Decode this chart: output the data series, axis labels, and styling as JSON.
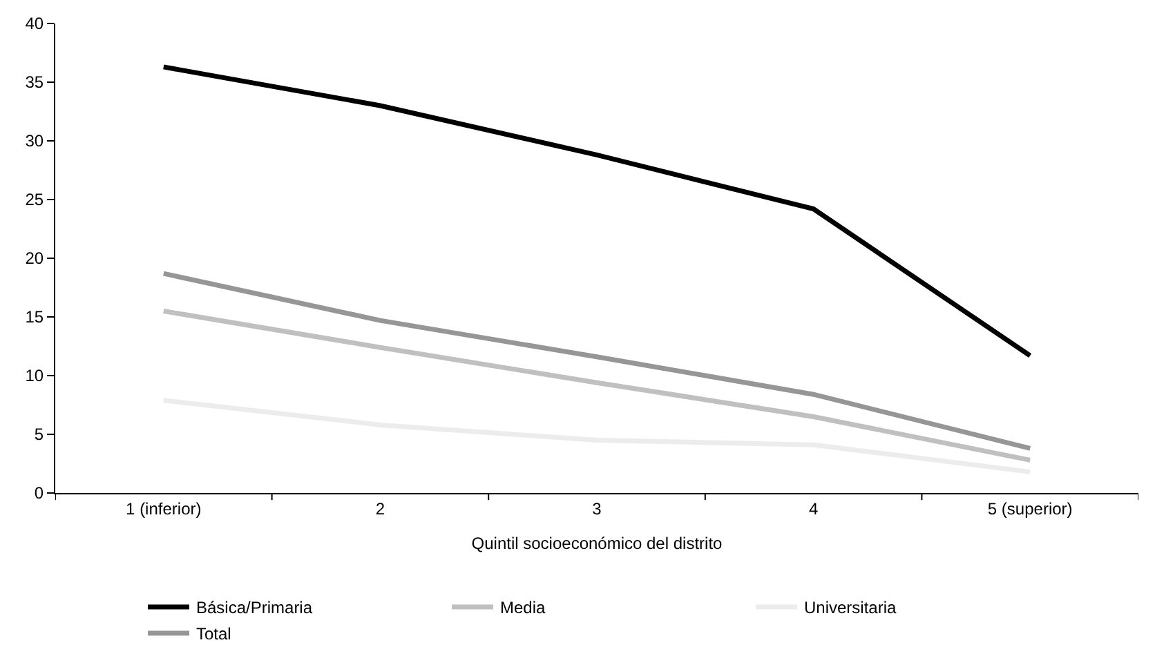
{
  "chart_data": {
    "type": "line",
    "xlabel": "Quintil socioeconómico del distrito",
    "categories": [
      "1 (inferior)",
      "2",
      "3",
      "4",
      "5 (superior)"
    ],
    "series": [
      {
        "name": "Básica/Primaria",
        "color": "#000000",
        "values": [
          36.3,
          33.0,
          28.8,
          24.2,
          11.7
        ]
      },
      {
        "name": "Media",
        "color": "#c0c0c0",
        "values": [
          15.5,
          12.4,
          9.4,
          6.5,
          2.8
        ]
      },
      {
        "name": "Universitaria",
        "color": "#ececec",
        "values": [
          7.9,
          5.8,
          4.5,
          4.1,
          1.8
        ]
      },
      {
        "name": "Total",
        "color": "#969696",
        "values": [
          18.7,
          14.7,
          11.6,
          8.4,
          3.8
        ]
      }
    ],
    "ylim": [
      0,
      40
    ],
    "yticks": [
      0,
      5,
      10,
      15,
      20,
      25,
      30,
      35,
      40
    ],
    "legend": "bottom",
    "marker": "none",
    "line_style": "solid"
  }
}
